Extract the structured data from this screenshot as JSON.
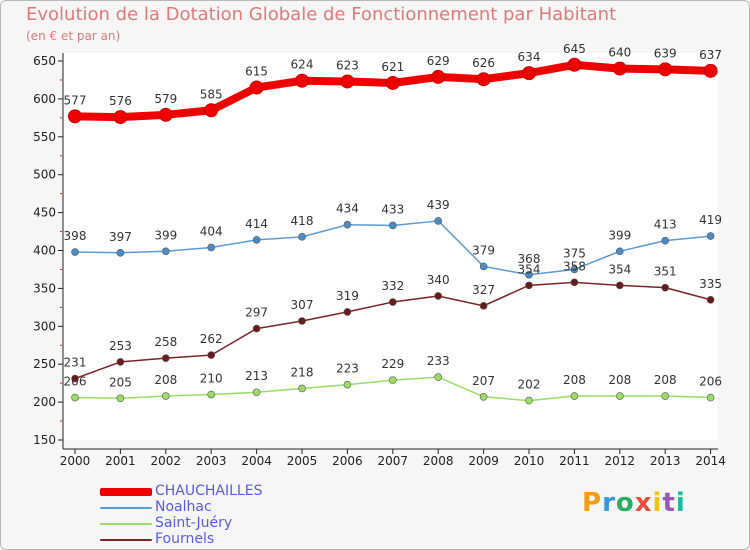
{
  "title": "Evolution de la Dotation Globale de Fonctionnement par Habitant",
  "subtitle": "(en € et par an)",
  "logo": {
    "text": "Proxiti",
    "letters": [
      "P",
      "r",
      "o",
      "x",
      "i",
      "t",
      "i"
    ],
    "colors": [
      "#f39c12",
      "#3498db",
      "#27ae60",
      "#e74c3c",
      "#f1c40f",
      "#9b59b6",
      "#1abc9c"
    ]
  },
  "chart_data": {
    "type": "line",
    "title": "Evolution de la Dotation Globale de Fonctionnement par Habitant",
    "subtitle": "(en € et par an)",
    "xlabel": "",
    "ylabel": "",
    "categories": [
      "2000",
      "2001",
      "2002",
      "2003",
      "2004",
      "2005",
      "2006",
      "2007",
      "2008",
      "2009",
      "2010",
      "2011",
      "2012",
      "2013",
      "2014"
    ],
    "ylim": [
      150,
      650
    ],
    "yticks": [
      150,
      200,
      250,
      300,
      350,
      400,
      450,
      500,
      550,
      600,
      650
    ],
    "grid": false,
    "legend_position": "bottom-left",
    "series": [
      {
        "name": "CHAUCHAILLES",
        "color": "#ee0000",
        "marker_color": "#ee0000",
        "emphasis": "thick",
        "values": [
          577,
          576,
          579,
          585,
          615,
          624,
          623,
          621,
          629,
          626,
          634,
          645,
          640,
          639,
          637
        ]
      },
      {
        "name": "Noalhac",
        "color": "#5b9bd5",
        "marker_color": "#4a8cc4",
        "emphasis": "thin",
        "values": [
          398,
          397,
          399,
          404,
          414,
          418,
          434,
          433,
          439,
          379,
          368,
          375,
          399,
          413,
          419
        ]
      },
      {
        "name": "Saint-Juéry",
        "color": "#99dd66",
        "marker_color": "#99dd66",
        "emphasis": "thin",
        "values": [
          206,
          205,
          208,
          210,
          213,
          218,
          223,
          229,
          233,
          207,
          202,
          208,
          208,
          208,
          206
        ]
      },
      {
        "name": "Fournels",
        "color": "#7a2424",
        "marker_color": "#6a1a1a",
        "emphasis": "thin",
        "values": [
          231,
          253,
          258,
          262,
          297,
          307,
          319,
          332,
          340,
          327,
          354,
          358,
          354,
          351,
          335
        ]
      }
    ]
  }
}
